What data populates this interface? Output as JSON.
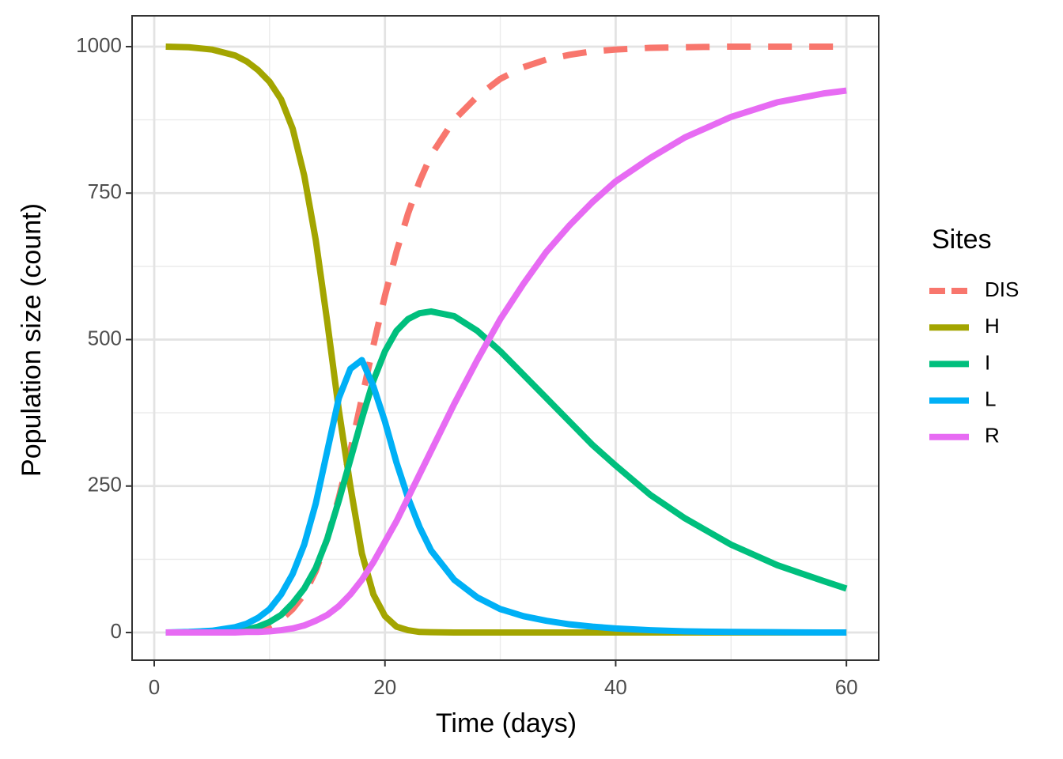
{
  "chart_data": {
    "type": "line",
    "xlabel": "Time (days)",
    "ylabel": "Population size (count)",
    "legend_title": "Sites",
    "legend_position": "right",
    "grid": true,
    "xlim": [
      -1.92,
      62.8
    ],
    "xticks": [
      0,
      20,
      40,
      60
    ],
    "xminor": [
      10,
      30,
      50
    ],
    "ylim": [
      -47.2,
      1052.6
    ],
    "yticks": [
      0,
      250,
      500,
      750,
      1000
    ],
    "yminor": [
      125,
      375,
      625,
      875
    ],
    "x": [
      1,
      3,
      5,
      7,
      8,
      9,
      10,
      11,
      12,
      13,
      14,
      15,
      16,
      17,
      18,
      19,
      20,
      21,
      22,
      23,
      24,
      26,
      28,
      30,
      32,
      34,
      36,
      38,
      40,
      43,
      46,
      50,
      54,
      58,
      60
    ],
    "series": [
      {
        "name": "DIS",
        "color": "#F8766D",
        "linetype": "dashed",
        "values": [
          0,
          0,
          1,
          2,
          3,
          6,
          12,
          22,
          40,
          65,
          105,
          160,
          230,
          310,
          400,
          490,
          575,
          650,
          715,
          770,
          815,
          875,
          915,
          945,
          965,
          978,
          986,
          992,
          995,
          998,
          999,
          1000,
          1000,
          1000,
          1000
        ]
      },
      {
        "name": "H",
        "color": "#A3A500",
        "linetype": "solid",
        "values": [
          1000,
          999,
          995,
          985,
          975,
          960,
          940,
          910,
          860,
          780,
          670,
          530,
          380,
          250,
          135,
          65,
          28,
          10,
          4,
          1,
          0.5,
          0,
          0,
          0,
          0,
          0,
          0,
          0,
          0,
          0,
          0,
          0,
          0,
          0,
          0
        ]
      },
      {
        "name": "I",
        "color": "#00BF7D",
        "linetype": "solid",
        "values": [
          0,
          0,
          1,
          3,
          5,
          10,
          18,
          30,
          50,
          75,
          110,
          160,
          225,
          295,
          365,
          430,
          480,
          515,
          535,
          545,
          548,
          540,
          515,
          480,
          440,
          400,
          360,
          320,
          285,
          235,
          195,
          150,
          115,
          88,
          75
        ]
      },
      {
        "name": "L",
        "color": "#00B0F6",
        "linetype": "solid",
        "values": [
          0,
          1,
          3,
          9,
          15,
          25,
          40,
          65,
          100,
          150,
          220,
          310,
          400,
          450,
          465,
          420,
          360,
          290,
          230,
          180,
          140,
          90,
          60,
          40,
          28,
          20,
          14,
          10,
          7,
          4,
          2,
          1,
          0.5,
          0,
          0
        ]
      },
      {
        "name": "R",
        "color": "#E76BF3",
        "linetype": "solid",
        "values": [
          0,
          0,
          0,
          0,
          1,
          1,
          2,
          4,
          7,
          12,
          20,
          30,
          45,
          65,
          90,
          120,
          155,
          190,
          230,
          270,
          310,
          390,
          465,
          535,
          595,
          650,
          695,
          735,
          770,
          810,
          845,
          880,
          905,
          920,
          925
        ]
      }
    ]
  }
}
